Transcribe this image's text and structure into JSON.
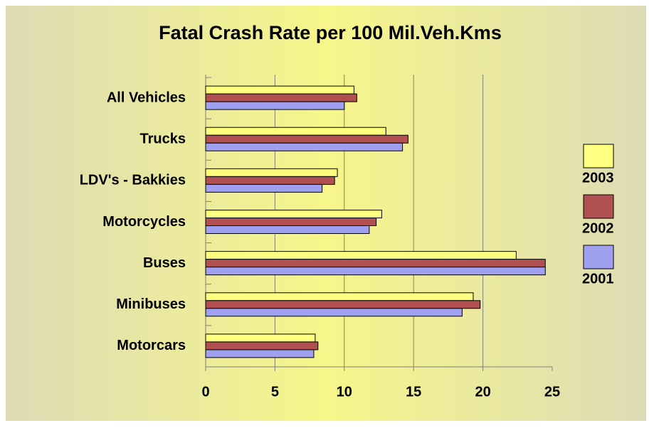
{
  "chart_data": {
    "type": "hbar",
    "title": "Fatal Crash Rate per 100 Mil.Veh.Kms",
    "categories": [
      "All Vehicles",
      "Trucks",
      "LDV's - Bakkies",
      "Motorcycles",
      "Buses",
      "Minibuses",
      "Motorcars"
    ],
    "series": [
      {
        "name": "2003",
        "color": "#ffff80",
        "values": [
          10.7,
          13.0,
          9.5,
          12.7,
          22.4,
          19.3,
          7.9
        ]
      },
      {
        "name": "2002",
        "color": "#b05050",
        "values": [
          10.9,
          14.6,
          9.3,
          12.3,
          24.5,
          19.8,
          8.1
        ]
      },
      {
        "name": "2001",
        "color": "#a0a0f0",
        "values": [
          10.0,
          14.2,
          8.4,
          11.8,
          24.5,
          18.5,
          7.8
        ]
      }
    ],
    "xlim": [
      0,
      25
    ],
    "xticks": [
      0,
      5,
      10,
      15,
      20,
      25
    ],
    "grid": true,
    "legend": "right"
  }
}
